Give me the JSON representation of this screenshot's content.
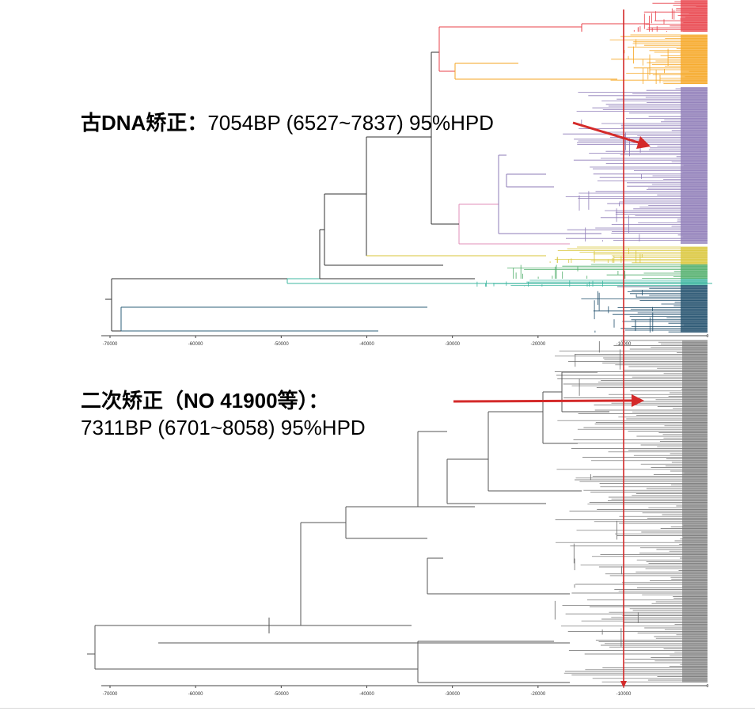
{
  "trees": [
    {
      "id": "top",
      "axis": {
        "min": -72000,
        "max": 0,
        "ticks": [
          -70000,
          -60000,
          -50000,
          -40000,
          -30000,
          -20000,
          -10000
        ],
        "tick_labels": [
          "-70000",
          "-60000",
          "-50000",
          "-40000",
          "-30000",
          "-20000",
          "-10000"
        ]
      },
      "clades": [
        {
          "name": "red",
          "color": "#e8414a"
        },
        {
          "name": "orange",
          "color": "#f6a623"
        },
        {
          "name": "purple",
          "color": "#8e7bb7"
        },
        {
          "name": "pink",
          "color": "#e08fb8"
        },
        {
          "name": "yellow",
          "color": "#d9c63a"
        },
        {
          "name": "green",
          "color": "#4fae6a"
        },
        {
          "name": "teal",
          "color": "#3fb7a1"
        },
        {
          "name": "darkblue",
          "color": "#1f4e6b"
        }
      ]
    },
    {
      "id": "bottom",
      "axis": {
        "min": -72000,
        "max": 0,
        "ticks": [
          -70000,
          -60000,
          -50000,
          -40000,
          -30000,
          -20000,
          -10000
        ],
        "tick_labels": [
          "-70000",
          "-60000",
          "-50000",
          "-40000",
          "-30000",
          "-20000",
          "-10000"
        ]
      },
      "color": "#555555"
    }
  ],
  "marker_line": {
    "value": -10000,
    "color": "#d42a2a"
  },
  "annotations": {
    "top": {
      "bold": "古DNA矫正：",
      "normal": "7054BP (6527~7837) 95%HPD"
    },
    "bottom": {
      "line1": "二次矫正（NO 41900等）：",
      "line2": "7311BP (6701~8058) 95%HPD"
    }
  },
  "arrow_color": "#d42a2a"
}
